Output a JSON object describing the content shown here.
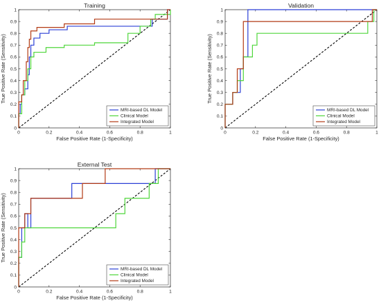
{
  "figure": {
    "background": "#ffffff"
  },
  "colors": {
    "mri": "#2a3fd6",
    "clinical": "#4ed63a",
    "integrated": "#b23a14",
    "diagonal": "#000000",
    "axis": "#262626"
  },
  "chart_data": [
    {
      "type": "line",
      "title": "Training",
      "xlabel": "False Positive Rate (1-Specificity)",
      "ylabel": "True Positive Rate (Sensitivity)",
      "xlim": [
        0,
        1
      ],
      "ylim": [
        0,
        1
      ],
      "xticks": [
        "0",
        "0.2",
        "0.4",
        "0.6",
        "0.8",
        "1"
      ],
      "yticks": [
        "0",
        "0.1",
        "0.2",
        "0.3",
        "0.4",
        "0.5",
        "0.6",
        "0.7",
        "0.8",
        "0.9",
        "1"
      ],
      "grid": false,
      "legend_position": "bottom-right",
      "reference_line": {
        "style": "dashed",
        "x": [
          0,
          1
        ],
        "y": [
          0,
          1
        ]
      },
      "series": [
        {
          "name": "MRI-based DL Model",
          "color": "#2a3fd6",
          "x": [
            0,
            0,
            0.01,
            0.01,
            0.02,
            0.02,
            0.04,
            0.04,
            0.06,
            0.06,
            0.07,
            0.07,
            0.08,
            0.08,
            0.1,
            0.1,
            0.14,
            0.14,
            0.2,
            0.2,
            0.32,
            0.32,
            0.88,
            0.88,
            0.98,
            0.98,
            1
          ],
          "y": [
            0,
            0.12,
            0.12,
            0.2,
            0.2,
            0.28,
            0.28,
            0.33,
            0.33,
            0.45,
            0.45,
            0.6,
            0.6,
            0.7,
            0.7,
            0.76,
            0.76,
            0.8,
            0.8,
            0.83,
            0.83,
            0.86,
            0.86,
            0.92,
            0.92,
            1,
            1
          ]
        },
        {
          "name": "Clinical Model",
          "color": "#4ed63a",
          "x": [
            0,
            0,
            0.02,
            0.02,
            0.04,
            0.04,
            0.06,
            0.06,
            0.08,
            0.08,
            0.1,
            0.1,
            0.18,
            0.18,
            0.3,
            0.3,
            0.5,
            0.5,
            0.72,
            0.72,
            0.8,
            0.8,
            0.87,
            0.87,
            0.9,
            0.9,
            1,
            1
          ],
          "y": [
            0,
            0.12,
            0.12,
            0.28,
            0.28,
            0.4,
            0.4,
            0.5,
            0.5,
            0.6,
            0.6,
            0.64,
            0.64,
            0.68,
            0.68,
            0.7,
            0.7,
            0.72,
            0.72,
            0.8,
            0.8,
            0.86,
            0.86,
            0.92,
            0.92,
            0.96,
            0.96,
            1
          ]
        },
        {
          "name": "Integrated Model",
          "color": "#b23a14",
          "x": [
            0,
            0,
            0.02,
            0.02,
            0.03,
            0.03,
            0.05,
            0.05,
            0.06,
            0.06,
            0.07,
            0.07,
            0.08,
            0.08,
            0.12,
            0.12,
            0.3,
            0.3,
            0.5,
            0.5,
            0.98,
            0.98,
            1
          ],
          "y": [
            0,
            0.22,
            0.22,
            0.28,
            0.28,
            0.4,
            0.4,
            0.56,
            0.56,
            0.68,
            0.68,
            0.75,
            0.75,
            0.82,
            0.82,
            0.85,
            0.85,
            0.88,
            0.88,
            0.92,
            0.92,
            1,
            1
          ]
        }
      ]
    },
    {
      "type": "line",
      "title": "Validation",
      "xlabel": "False Positive Rate (1-Specificity)",
      "ylabel": "True Positive Rate (Sensitivity)",
      "xlim": [
        0,
        1
      ],
      "ylim": [
        0,
        1
      ],
      "xticks": [
        "0",
        "0.2",
        "0.4",
        "0.6",
        "0.8",
        "1"
      ],
      "yticks": [
        "0",
        "0.1",
        "0.2",
        "0.3",
        "0.4",
        "0.5",
        "0.6",
        "0.7",
        "0.8",
        "0.9",
        "1"
      ],
      "grid": false,
      "legend_position": "bottom-right",
      "reference_line": {
        "style": "dashed",
        "x": [
          0,
          1
        ],
        "y": [
          0,
          1
        ]
      },
      "series": [
        {
          "name": "MRI-based DL Model",
          "color": "#2a3fd6",
          "x": [
            0,
            0,
            0.05,
            0.05,
            0.1,
            0.1,
            0.12,
            0.12,
            0.15,
            0.15,
            0.96,
            0.96,
            1
          ],
          "y": [
            0,
            0.2,
            0.2,
            0.3,
            0.3,
            0.5,
            0.5,
            0.6,
            0.6,
            1,
            1,
            1,
            1
          ]
        },
        {
          "name": "Clinical Model",
          "color": "#4ed63a",
          "x": [
            0,
            0,
            0.05,
            0.05,
            0.08,
            0.08,
            0.12,
            0.12,
            0.18,
            0.18,
            0.21,
            0.21,
            0.94,
            0.94,
            0.98,
            0.98,
            1
          ],
          "y": [
            0,
            0.2,
            0.2,
            0.3,
            0.3,
            0.4,
            0.4,
            0.6,
            0.6,
            0.7,
            0.7,
            0.8,
            0.8,
            0.9,
            0.9,
            1,
            1
          ]
        },
        {
          "name": "Integrated Model",
          "color": "#b23a14",
          "x": [
            0,
            0,
            0.05,
            0.05,
            0.08,
            0.08,
            0.12,
            0.12,
            0.97,
            0.97,
            1
          ],
          "y": [
            0,
            0.2,
            0.2,
            0.3,
            0.3,
            0.5,
            0.5,
            0.9,
            0.9,
            1,
            1
          ]
        }
      ]
    },
    {
      "type": "line",
      "title": "External Test",
      "xlabel": "False Positive Rate (1-Specificity)",
      "ylabel": "True Positive Rate (Sensitivity)",
      "xlim": [
        0,
        1
      ],
      "ylim": [
        0,
        1
      ],
      "xticks": [
        "0",
        "0.2",
        "0.4",
        "0.6",
        "0.8",
        "1"
      ],
      "yticks": [
        "0",
        "0.1",
        "0.2",
        "0.3",
        "0.4",
        "0.5",
        "0.6",
        "0.7",
        "0.8",
        "0.9",
        "1"
      ],
      "grid": false,
      "legend_position": "bottom-right",
      "reference_line": {
        "style": "dashed",
        "x": [
          0,
          1
        ],
        "y": [
          0,
          1
        ]
      },
      "series": [
        {
          "name": "MRI-based DL Model",
          "color": "#2a3fd6",
          "x": [
            0,
            0,
            0.02,
            0.02,
            0.04,
            0.04,
            0.06,
            0.06,
            0.08,
            0.08,
            0.35,
            0.35,
            0.9,
            0.9,
            1
          ],
          "y": [
            0,
            0.25,
            0.25,
            0.5,
            0.5,
            0.62,
            0.62,
            0.5,
            0.5,
            0.75,
            0.75,
            0.875,
            0.875,
            1,
            1
          ]
        },
        {
          "name": "Clinical Model",
          "color": "#4ed63a",
          "x": [
            0,
            0,
            0.02,
            0.02,
            0.04,
            0.04,
            0.06,
            0.06,
            0.64,
            0.64,
            0.7,
            0.7,
            0.8,
            0.8,
            0.86,
            0.86,
            0.9,
            0.9,
            0.92,
            0.92,
            1
          ],
          "y": [
            0,
            0.25,
            0.25,
            0.38,
            0.38,
            0.5,
            0.5,
            0.5,
            0.5,
            0.62,
            0.62,
            0.75,
            0.75,
            0.75,
            0.75,
            0.875,
            0.875,
            0.875,
            0.875,
            1,
            1
          ]
        },
        {
          "name": "Integrated Model",
          "color": "#b23a14",
          "x": [
            0,
            0,
            0.02,
            0.02,
            0.04,
            0.04,
            0.06,
            0.06,
            0.08,
            0.08,
            0.42,
            0.42,
            0.57,
            0.57,
            1
          ],
          "y": [
            0,
            0.5,
            0.5,
            0.5,
            0.5,
            0.62,
            0.62,
            0.62,
            0.62,
            0.75,
            0.75,
            0.875,
            0.875,
            1,
            1
          ]
        }
      ]
    }
  ]
}
